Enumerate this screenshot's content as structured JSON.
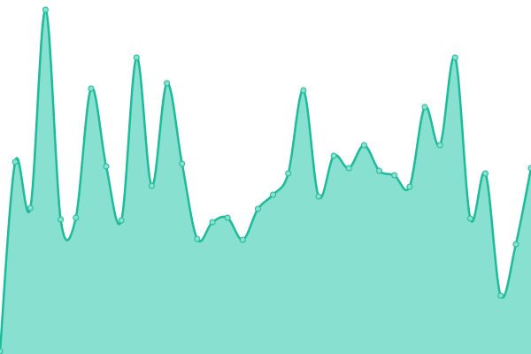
{
  "chart_data": {
    "type": "area",
    "values": [
      3,
      217,
      165,
      389,
      152,
      154,
      300,
      212,
      151,
      335,
      190,
      306,
      215,
      130,
      149,
      154,
      129,
      164,
      180,
      204,
      298,
      178,
      224,
      210,
      236,
      207,
      202,
      189,
      279,
      236,
      335,
      153,
      204,
      66,
      124,
      210
    ],
    "color": "#1dbb99",
    "fill": "#88e0d0",
    "ylim": [
      0,
      400
    ]
  }
}
